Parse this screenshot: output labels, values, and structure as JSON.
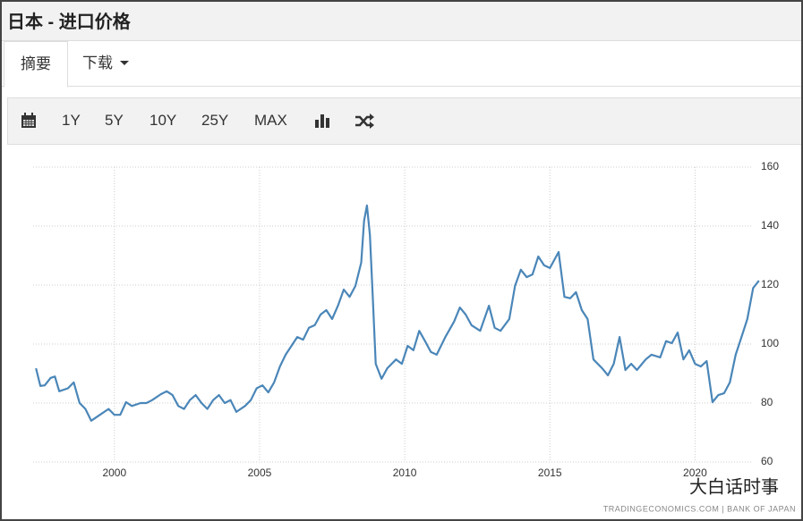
{
  "header": {
    "title": "日本 - 进口价格"
  },
  "tabs": [
    "摘要",
    "下载"
  ],
  "toolbar": {
    "ranges": [
      "1Y",
      "5Y",
      "10Y",
      "25Y",
      "MAX"
    ]
  },
  "source": "TRADINGECONOMICS.COM  |  BANK OF JAPAN",
  "watermark": "大白话时事",
  "chart_data": {
    "type": "line",
    "series": [
      {
        "color": "#4a86b8",
        "x": [
          1997.3,
          1997.45,
          1997.6,
          1997.8,
          1997.95,
          1998.1,
          1998.4,
          1998.6,
          1998.8,
          1999.0,
          1999.2,
          1999.5,
          1999.8,
          2000.0,
          2000.2,
          2000.4,
          2000.6,
          2000.9,
          2001.1,
          2001.3,
          2001.6,
          2001.8,
          2002.0,
          2002.2,
          2002.4,
          2002.6,
          2002.8,
          2003.0,
          2003.2,
          2003.4,
          2003.6,
          2003.8,
          2004.0,
          2004.2,
          2004.5,
          2004.7,
          2004.9,
          2005.1,
          2005.3,
          2005.5,
          2005.7,
          2005.9,
          2006.1,
          2006.3,
          2006.5,
          2006.7,
          2006.9,
          2007.1,
          2007.3,
          2007.5,
          2007.7,
          2007.9,
          2008.1,
          2008.3,
          2008.5,
          2008.6,
          2008.7,
          2008.8,
          2008.9,
          2009.0,
          2009.2,
          2009.4,
          2009.7,
          2009.9,
          2010.1,
          2010.3,
          2010.5,
          2010.7,
          2010.9,
          2011.1,
          2011.4,
          2011.7,
          2011.9,
          2012.1,
          2012.3,
          2012.6,
          2012.9,
          2013.1,
          2013.3,
          2013.6,
          2013.8,
          2014.0,
          2014.2,
          2014.4,
          2014.6,
          2014.8,
          2015.0,
          2015.3,
          2015.5,
          2015.7,
          2015.9,
          2016.1,
          2016.3,
          2016.5,
          2016.8,
          2017.0,
          2017.2,
          2017.4,
          2017.6,
          2017.8,
          2018.0,
          2018.3,
          2018.5,
          2018.8,
          2019.0,
          2019.2,
          2019.4,
          2019.6,
          2019.8,
          2020.0,
          2020.2,
          2020.4,
          2020.6,
          2020.8,
          2021.0,
          2021.2,
          2021.4,
          2021.6,
          2021.8,
          2022.0,
          2022.2
        ],
        "values": [
          91.8,
          85.8,
          86,
          88.5,
          89,
          84,
          85,
          87,
          80,
          78,
          74,
          76,
          78,
          76,
          76,
          80.3,
          79,
          80,
          80,
          81,
          83,
          84,
          82.7,
          79,
          78,
          81,
          82.7,
          80,
          78,
          81,
          82.7,
          80,
          81,
          77,
          79,
          81,
          85,
          86,
          83.6,
          87,
          92.4,
          96.4,
          99.4,
          102.4,
          101.5,
          105.5,
          106.4,
          110,
          111.5,
          108.5,
          113,
          118.5,
          116,
          119.7,
          127.6,
          141.8,
          147,
          137,
          116,
          93.3,
          88.2,
          91.8,
          94.8,
          93.3,
          99.4,
          97.9,
          104.5,
          101,
          97.3,
          96.4,
          102.4,
          107.6,
          112.4,
          110,
          106.4,
          104.5,
          113,
          105.5,
          104.5,
          108.5,
          119.7,
          125.2,
          122.7,
          123.6,
          129.7,
          126.7,
          125.8,
          131.2,
          116,
          115.5,
          117.6,
          111.5,
          108.5,
          94.8,
          91.8,
          89.4,
          93.3,
          102.4,
          91.2,
          93.3,
          91.2,
          94.8,
          96.4,
          95.5,
          101,
          100.3,
          103.9,
          94.8,
          97.9,
          93.3,
          92.4,
          94.2,
          80.3,
          82.7,
          83.3,
          87,
          96.4,
          102.4,
          108.5,
          119,
          121.5
        ]
      }
    ],
    "xlim": [
      1997.2,
      2022.3
    ],
    "xticks": [
      2000,
      2005,
      2010,
      2015,
      2020
    ],
    "ylim": [
      60,
      160
    ],
    "yticks": [
      60,
      80,
      100,
      120,
      140,
      160
    ],
    "grid": true
  }
}
